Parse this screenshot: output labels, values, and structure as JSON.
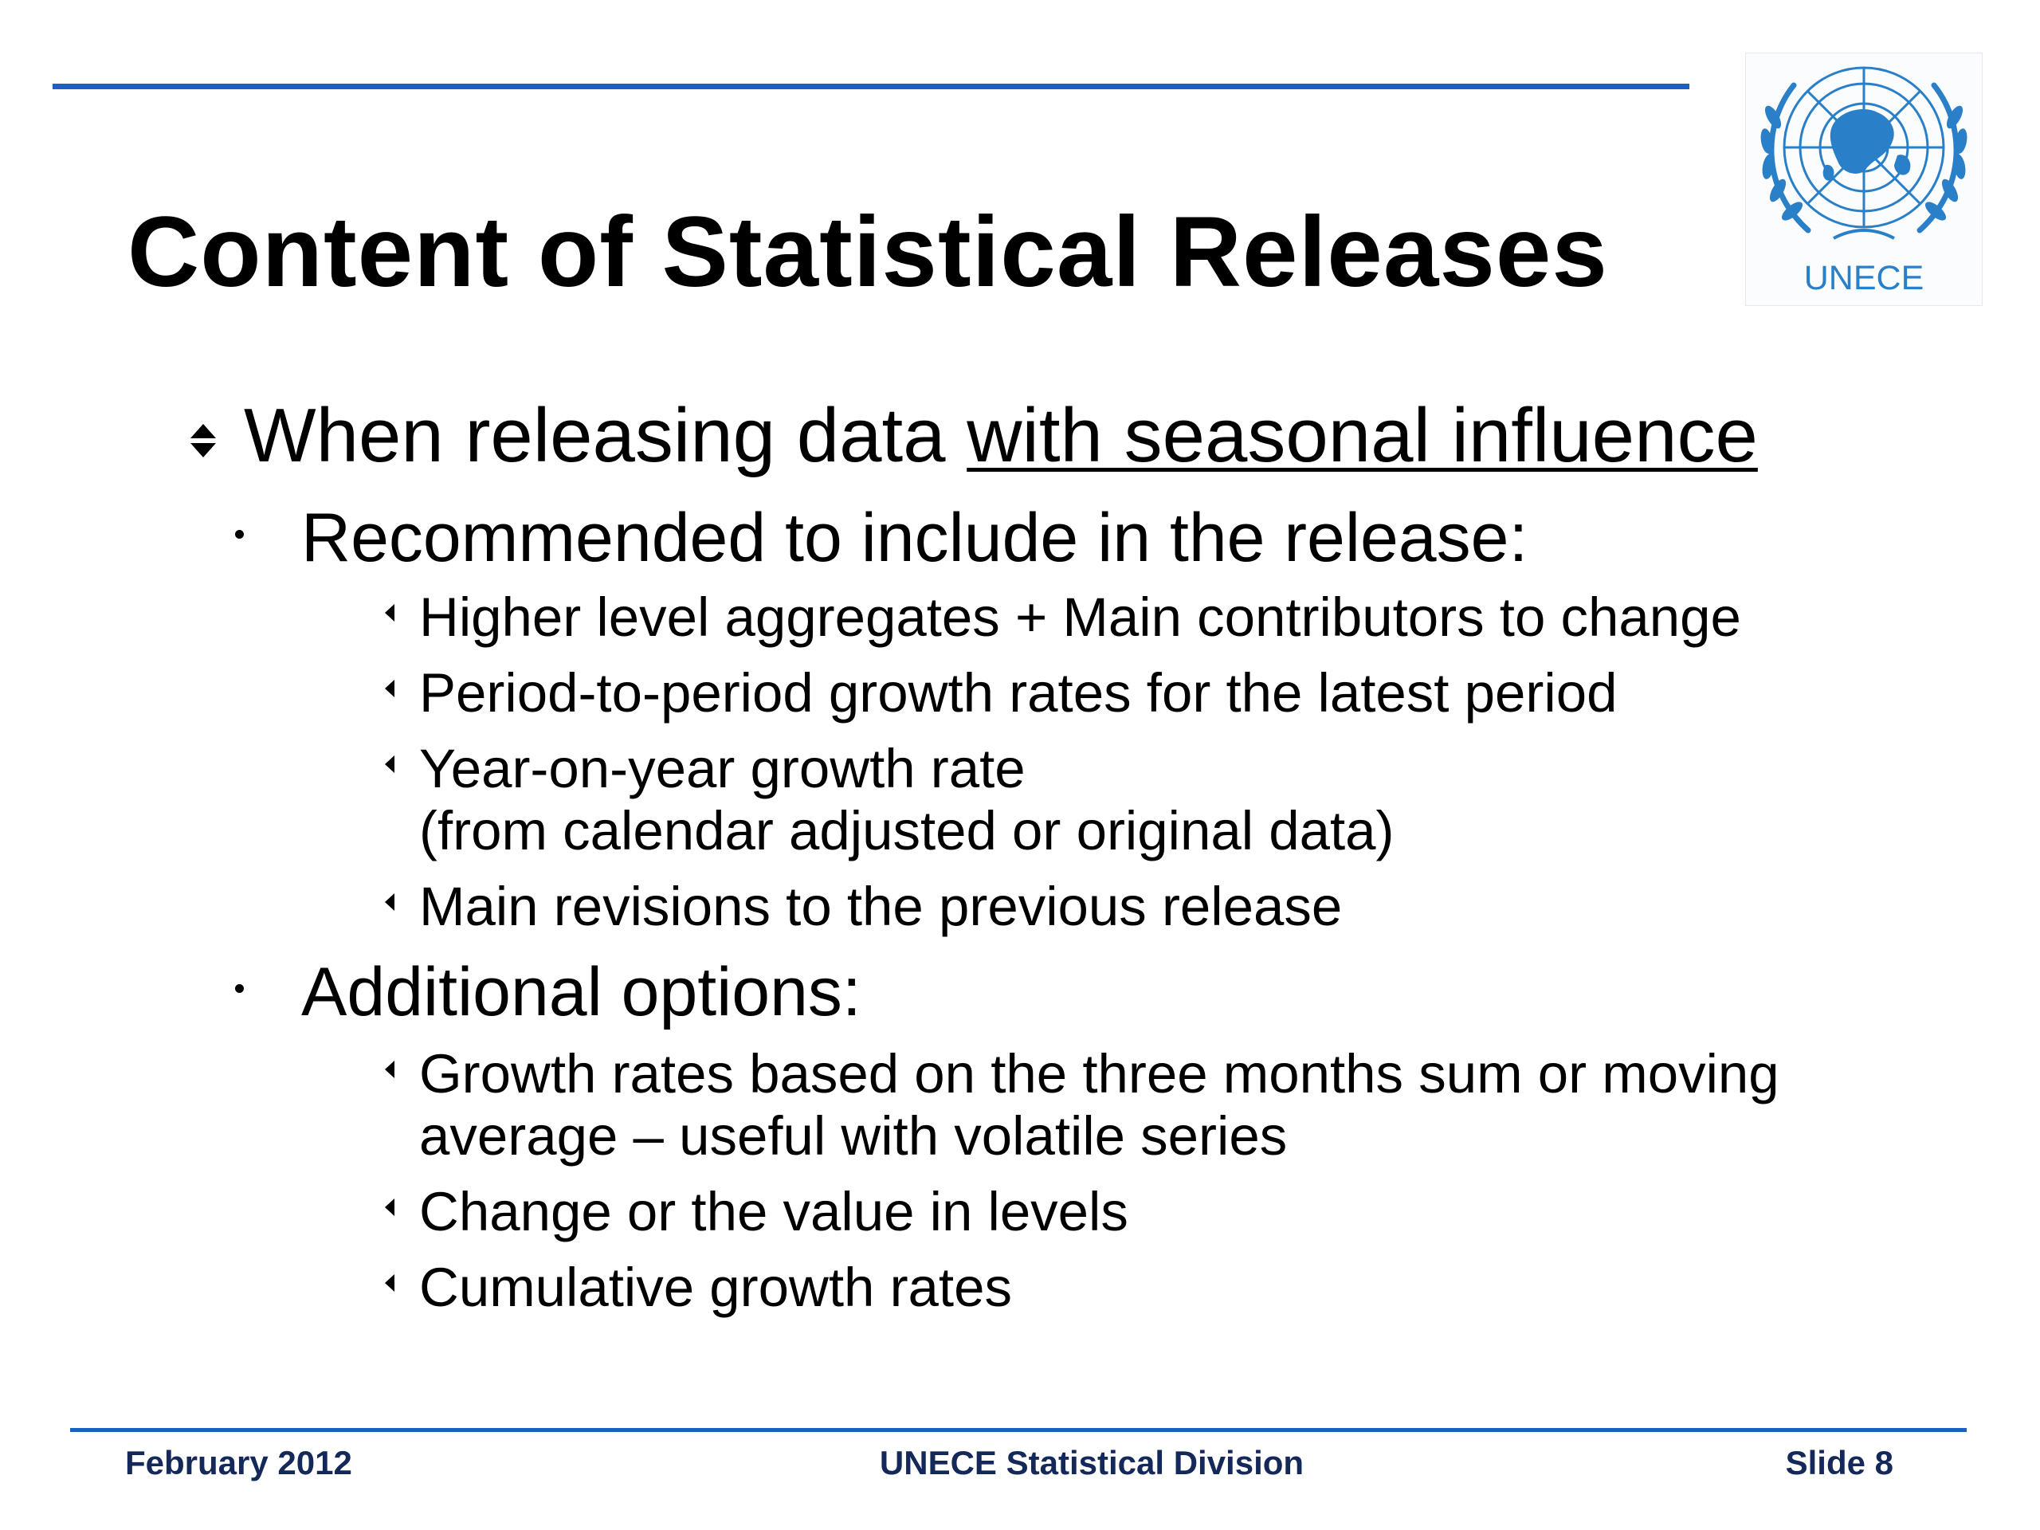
{
  "slide": {
    "title": "Content of Statistical Releases"
  },
  "logo": {
    "text": "UNECE",
    "icon": "un-emblem-icon"
  },
  "content": {
    "level1_before": "When releasing data ",
    "level1_underlined": "with seasonal influence",
    "recommended_heading": "Recommended to include in the release:",
    "recommended_items": [
      "Higher level aggregates + Main contributors to change",
      "Period-to-period growth rates for the latest period",
      "Year-on-year growth rate",
      "(from calendar adjusted or original data)",
      "Main revisions to the previous release"
    ],
    "additional_heading": "Additional options:",
    "additional_items": [
      "Growth rates based on the three months sum or moving",
      "average – useful with volatile series",
      "Change or the value in levels",
      "Cumulative growth rates"
    ]
  },
  "footer": {
    "left": "February 2012",
    "center": "UNECE Statistical Division",
    "right": "Slide 8"
  },
  "colors": {
    "accent_blue": "#1f5fbf",
    "logo_blue": "#2a7fc9",
    "footer_text": "#14285a"
  }
}
